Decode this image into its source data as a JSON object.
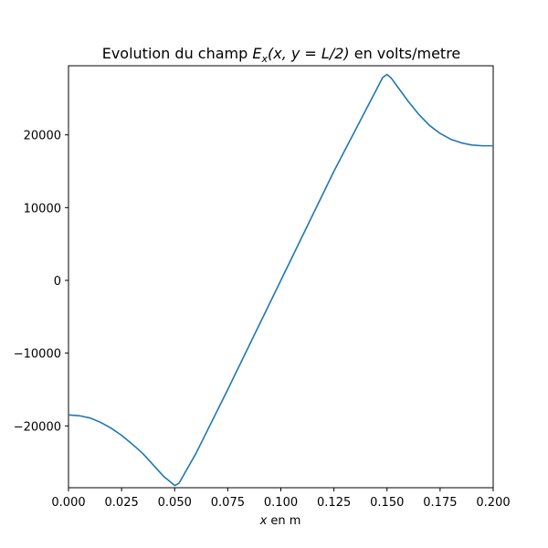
{
  "chart_data": {
    "type": "line",
    "title": "Evolution du champ E_x(x, y = L/2) en volts/metre",
    "title_parts": {
      "prefix": "Evolution du champ ",
      "E": "E",
      "sub": "x",
      "args": "(x, y = L/2)",
      "suffix": " en volts/metre"
    },
    "xlabel": "x en m",
    "xlabel_parts": {
      "var": "x",
      "rest": " en m"
    },
    "ylabel": "",
    "xlim": [
      0.0,
      0.2
    ],
    "ylim": [
      -28500,
      29500
    ],
    "xticks": [
      0.0,
      0.025,
      0.05,
      0.075,
      0.1,
      0.125,
      0.15,
      0.175,
      0.2
    ],
    "xtick_labels": [
      "0.000",
      "0.025",
      "0.050",
      "0.075",
      "0.100",
      "0.125",
      "0.150",
      "0.175",
      "0.200"
    ],
    "yticks": [
      -20000,
      -10000,
      0,
      10000,
      20000
    ],
    "ytick_labels": [
      "−20000",
      "−10000",
      "0",
      "10000",
      "20000"
    ],
    "grid": false,
    "color": "#1f77b4",
    "series": [
      {
        "x": [
          0.0,
          0.005,
          0.01,
          0.015,
          0.02,
          0.025,
          0.03,
          0.035,
          0.04,
          0.045,
          0.048,
          0.05,
          0.052,
          0.06,
          0.075,
          0.1,
          0.125,
          0.148,
          0.15,
          0.152,
          0.155,
          0.16,
          0.165,
          0.17,
          0.175,
          0.18,
          0.185,
          0.19,
          0.195,
          0.2
        ],
        "y": [
          -18500,
          -18600,
          -18900,
          -19500,
          -20300,
          -21300,
          -22500,
          -23800,
          -25400,
          -27000,
          -27700,
          -28200,
          -27900,
          -23800,
          -15000,
          0,
          15000,
          27900,
          28300,
          27800,
          26600,
          24600,
          22800,
          21300,
          20200,
          19400,
          18900,
          18600,
          18500,
          18500
        ]
      }
    ]
  }
}
